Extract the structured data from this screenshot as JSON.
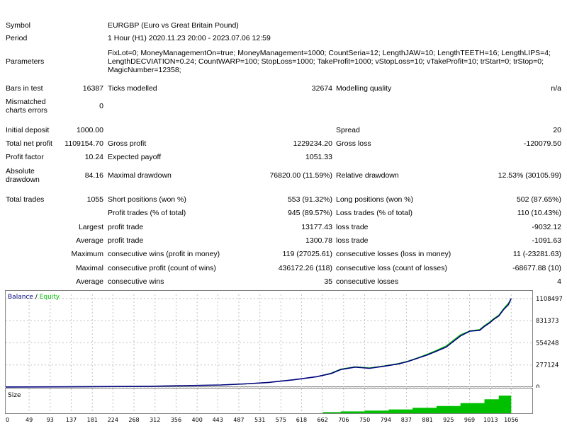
{
  "report": {
    "symbol_label": "Symbol",
    "symbol_value": "EURGBP (Euro vs Great Britain Pound)",
    "period_label": "Period",
    "period_value": "1 Hour (H1) 2020.11.23 20:00 - 2023.07.06 12:59",
    "parameters_label": "Parameters",
    "parameters_value": "FixLot=0; MoneyManagementOn=true; MoneyManagement=1000; CountSeria=12; LengthJAW=10; LengthTEETH=16; LengthLIPS=4; LengthDECVIATION=0.24; CountWARP=100; StopLoss=1000; TakeProfit=1000; vStopLoss=10; vTakeProfit=10; trStart=0; trStop=0; MagicNumber=12358;",
    "bars_label": "Bars in test",
    "bars_value": "16387",
    "ticks_label": "Ticks modelled",
    "ticks_value": "32674",
    "quality_label": "Modelling quality",
    "quality_value": "n/a",
    "mismatch_label_1": "Mismatched",
    "mismatch_label_2": "charts errors",
    "mismatch_value": "0",
    "deposit_label": "Initial deposit",
    "deposit_value": "1000.00",
    "spread_label": "Spread",
    "spread_value": "20",
    "net_label": "Total net profit",
    "net_value": "1109154.70",
    "gross_profit_label": "Gross profit",
    "gross_profit_value": "1229234.20",
    "gross_loss_label": "Gross loss",
    "gross_loss_value": "-120079.50",
    "pf_label": "Profit factor",
    "pf_value": "10.24",
    "payoff_label": "Expected payoff",
    "payoff_value": "1051.33",
    "abs_dd_label_1": "Absolute",
    "abs_dd_label_2": "drawdown",
    "abs_dd_value": "84.16",
    "max_dd_label": "Maximal drawdown",
    "max_dd_value": "76820.00 (11.59%)",
    "rel_dd_label": "Relative drawdown",
    "rel_dd_value": "12.53% (30105.99)",
    "trades_label": "Total trades",
    "trades_value": "1055",
    "short_label": "Short positions (won %)",
    "short_value": "553 (91.32%)",
    "long_label": "Long positions (won %)",
    "long_value": "502 (87.65%)",
    "profit_trades_label": "Profit trades (% of total)",
    "profit_trades_value": "945 (89.57%)",
    "loss_trades_label": "Loss trades (% of total)",
    "loss_trades_value": "110 (10.43%)",
    "largest_label": "Largest",
    "largest_profit_label": "profit trade",
    "largest_profit_value": "13177.43",
    "largest_loss_label": "loss trade",
    "largest_loss_value": "-9032.12",
    "average_label": "Average",
    "average_profit_label": "profit trade",
    "average_profit_value": "1300.78",
    "average_loss_label": "loss trade",
    "average_loss_value": "-1091.63",
    "maximum_label": "Maximum",
    "max_wins_label": "consecutive wins (profit in money)",
    "max_wins_value": "119 (27025.61)",
    "max_losses_label": "consecutive losses (loss in money)",
    "max_losses_value": "11 (-23281.63)",
    "maximal_label": "Maximal",
    "maximal_profit_label": "consecutive profit (count of wins)",
    "maximal_profit_value": "436172.26 (118)",
    "maximal_loss_label": "consecutive loss (count of losses)",
    "maximal_loss_value": "-68677.88 (10)",
    "avg_consec_label": "Average",
    "avg_wins_label": "consecutive wins",
    "avg_wins_value": "35",
    "avg_losses_label": "consecutive losses",
    "avg_losses_value": "4"
  },
  "colors": {
    "balance": "#00007f",
    "equity": "#00c000",
    "size": "#00c000",
    "grid": "#c0c0c0",
    "border": "#808080"
  },
  "chart_data": [
    {
      "type": "line",
      "legend_balance": "Balance",
      "legend_sep": " / ",
      "legend_equity": "Equity",
      "y_ticks": [
        0,
        277124,
        554248,
        831373,
        1108497
      ],
      "x_ticks": [
        0,
        49,
        93,
        137,
        181,
        224,
        268,
        312,
        356,
        400,
        443,
        487,
        531,
        575,
        618,
        662,
        706,
        750,
        794,
        837,
        881,
        925,
        969,
        1013,
        1056
      ],
      "xlim": [
        0,
        1100
      ],
      "ylim": [
        0,
        1160000
      ],
      "series": [
        {
          "name": "Balance",
          "x": [
            0,
            100,
            200,
            300,
            400,
            450,
            500,
            550,
            600,
            650,
            680,
            700,
            730,
            760,
            790,
            820,
            840,
            860,
            880,
            900,
            920,
            950,
            970,
            990,
            1000,
            1010,
            1020,
            1030,
            1040,
            1050,
            1056
          ],
          "y": [
            1000,
            3000,
            6000,
            10000,
            20000,
            27000,
            40000,
            58000,
            90000,
            130000,
            170000,
            220000,
            250000,
            235000,
            260000,
            290000,
            320000,
            360000,
            400000,
            450000,
            500000,
            640000,
            700000,
            710000,
            760000,
            800000,
            850000,
            890000,
            970000,
            1030000,
            1108497
          ]
        },
        {
          "name": "Equity",
          "x": [
            0,
            100,
            200,
            300,
            400,
            450,
            500,
            550,
            600,
            650,
            680,
            700,
            730,
            760,
            790,
            820,
            840,
            860,
            880,
            900,
            920,
            950,
            970,
            990,
            1000,
            1010,
            1020,
            1030,
            1040,
            1050,
            1056
          ],
          "y": [
            1000,
            3000,
            6000,
            10000,
            20000,
            27000,
            40000,
            58000,
            90000,
            130000,
            175000,
            225000,
            255000,
            240000,
            265000,
            295000,
            325000,
            365000,
            410000,
            460000,
            515000,
            655000,
            705000,
            720000,
            770000,
            810000,
            860000,
            900000,
            980000,
            1050000,
            1108497
          ]
        }
      ]
    },
    {
      "type": "area",
      "title": "Size",
      "start_x": 662,
      "xlim": [
        0,
        1100
      ],
      "x": [
        662,
        700,
        750,
        800,
        850,
        900,
        950,
        1000,
        1030,
        1056
      ],
      "y": [
        0.05,
        0.08,
        0.12,
        0.17,
        0.24,
        0.32,
        0.45,
        0.62,
        0.78,
        1.0
      ]
    }
  ]
}
